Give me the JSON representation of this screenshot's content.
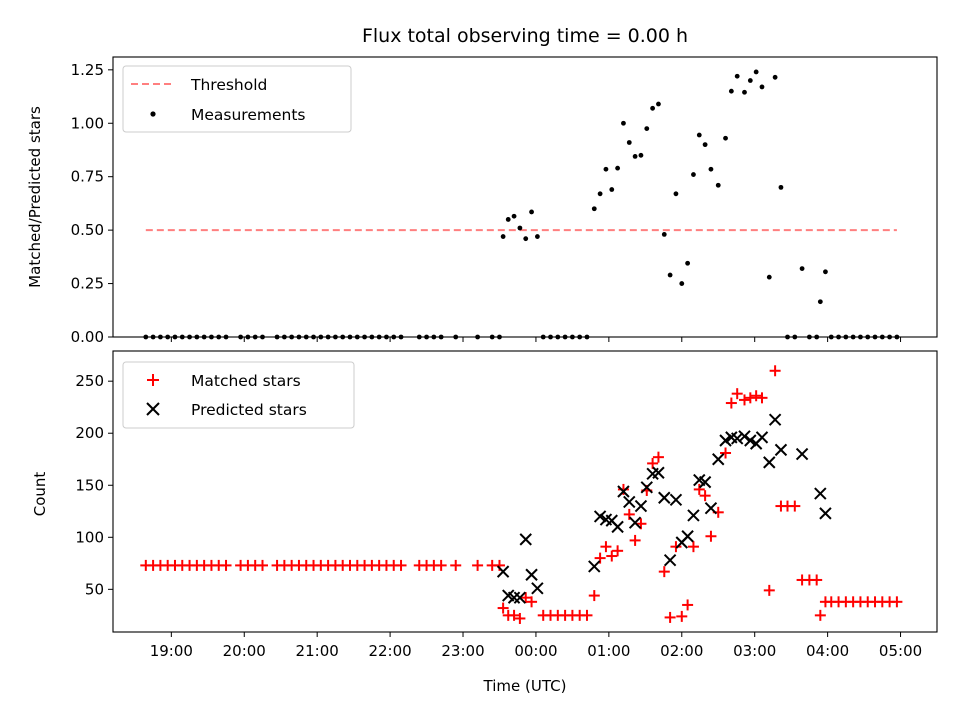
{
  "chart_data": [
    {
      "type": "scatter",
      "title": "Flux total observing time = 0.00 h",
      "xlabel": "",
      "ylabel": "Matched/Predicted stars",
      "xlim": [
        18.2,
        29.5
      ],
      "ylim": [
        0,
        1.31
      ],
      "yticks": [
        0,
        0.25,
        0.5,
        0.75,
        1.0,
        1.25
      ],
      "ytick_labels": [
        "0.00",
        "0.25",
        "0.50",
        "0.75",
        "1.00",
        "1.25"
      ],
      "xticks": [
        19,
        20,
        21,
        22,
        23,
        24,
        25,
        26,
        27,
        28,
        29
      ],
      "grid": false,
      "legend": "top-left",
      "threshold": {
        "name": "Threshold",
        "value": 0.5,
        "x_range": [
          18.65,
          28.95
        ],
        "color": "#ff7f7f"
      },
      "series": [
        {
          "name": "Measurements",
          "color": "#000000",
          "marker": "dot",
          "points": [
            [
              18.65,
              0
            ],
            [
              18.75,
              0
            ],
            [
              18.85,
              0
            ],
            [
              18.95,
              0
            ],
            [
              19.05,
              0
            ],
            [
              19.15,
              0
            ],
            [
              19.25,
              0
            ],
            [
              19.35,
              0
            ],
            [
              19.45,
              0
            ],
            [
              19.55,
              0
            ],
            [
              19.65,
              0
            ],
            [
              19.75,
              0
            ],
            [
              19.95,
              0
            ],
            [
              20.05,
              0
            ],
            [
              20.15,
              0
            ],
            [
              20.25,
              0
            ],
            [
              20.45,
              0
            ],
            [
              20.55,
              0
            ],
            [
              20.65,
              0
            ],
            [
              20.75,
              0
            ],
            [
              20.85,
              0
            ],
            [
              20.95,
              0
            ],
            [
              21.05,
              0
            ],
            [
              21.15,
              0
            ],
            [
              21.25,
              0
            ],
            [
              21.35,
              0
            ],
            [
              21.45,
              0
            ],
            [
              21.55,
              0
            ],
            [
              21.65,
              0
            ],
            [
              21.75,
              0
            ],
            [
              21.85,
              0
            ],
            [
              21.95,
              0
            ],
            [
              22.05,
              0
            ],
            [
              22.15,
              0
            ],
            [
              22.4,
              0
            ],
            [
              22.5,
              0
            ],
            [
              22.6,
              0
            ],
            [
              22.7,
              0
            ],
            [
              22.9,
              0
            ],
            [
              23.2,
              0
            ],
            [
              23.4,
              0
            ],
            [
              23.5,
              0
            ],
            [
              23.55,
              0.47
            ],
            [
              23.62,
              0.55
            ],
            [
              23.7,
              0.565
            ],
            [
              23.78,
              0.51
            ],
            [
              23.86,
              0.46
            ],
            [
              23.94,
              0.585
            ],
            [
              24.02,
              0.47
            ],
            [
              24.1,
              0
            ],
            [
              24.2,
              0
            ],
            [
              24.3,
              0
            ],
            [
              24.4,
              0
            ],
            [
              24.5,
              0
            ],
            [
              24.6,
              0
            ],
            [
              24.7,
              0
            ],
            [
              24.8,
              0.6
            ],
            [
              24.88,
              0.67
            ],
            [
              24.96,
              0.785
            ],
            [
              25.04,
              0.69
            ],
            [
              25.12,
              0.79
            ],
            [
              25.2,
              1.0
            ],
            [
              25.28,
              0.91
            ],
            [
              25.36,
              0.845
            ],
            [
              25.44,
              0.85
            ],
            [
              25.52,
              0.975
            ],
            [
              25.6,
              1.07
            ],
            [
              25.68,
              1.09
            ],
            [
              25.76,
              0.48
            ],
            [
              25.84,
              0.29
            ],
            [
              25.92,
              0.67
            ],
            [
              26.0,
              0.25
            ],
            [
              26.08,
              0.345
            ],
            [
              26.16,
              0.76
            ],
            [
              26.24,
              0.945
            ],
            [
              26.32,
              0.9
            ],
            [
              26.4,
              0.785
            ],
            [
              26.5,
              0.71
            ],
            [
              26.6,
              0.93
            ],
            [
              26.68,
              1.15
            ],
            [
              26.76,
              1.22
            ],
            [
              26.86,
              1.145
            ],
            [
              26.94,
              1.2
            ],
            [
              27.02,
              1.24
            ],
            [
              27.1,
              1.17
            ],
            [
              27.2,
              0.28
            ],
            [
              27.28,
              1.215
            ],
            [
              27.36,
              0.7
            ],
            [
              27.45,
              0
            ],
            [
              27.55,
              0
            ],
            [
              27.65,
              0.32
            ],
            [
              27.75,
              0
            ],
            [
              27.85,
              0
            ],
            [
              27.9,
              0.165
            ],
            [
              27.97,
              0.305
            ],
            [
              28.05,
              0
            ],
            [
              28.15,
              0
            ],
            [
              28.25,
              0
            ],
            [
              28.35,
              0
            ],
            [
              28.45,
              0
            ],
            [
              28.55,
              0
            ],
            [
              28.65,
              0
            ],
            [
              28.75,
              0
            ],
            [
              28.85,
              0
            ],
            [
              28.95,
              0
            ]
          ]
        }
      ]
    },
    {
      "type": "scatter",
      "title": "",
      "xlabel": "Time (UTC)",
      "ylabel": "Count",
      "xlim": [
        18.2,
        29.5
      ],
      "ylim": [
        9,
        279
      ],
      "yticks": [
        50,
        100,
        150,
        200,
        250
      ],
      "ytick_labels": [
        "50",
        "100",
        "150",
        "200",
        "250"
      ],
      "xticks": [
        19,
        20,
        21,
        22,
        23,
        24,
        25,
        26,
        27,
        28,
        29
      ],
      "xtick_labels": [
        "19:00",
        "20:00",
        "21:00",
        "22:00",
        "23:00",
        "00:00",
        "01:00",
        "02:00",
        "03:00",
        "04:00",
        "05:00"
      ],
      "grid": false,
      "legend": "top-left",
      "series": [
        {
          "name": "Matched stars",
          "color": "#ff0000",
          "marker": "plus",
          "points": [
            [
              18.65,
              73
            ],
            [
              18.75,
              73
            ],
            [
              18.85,
              73
            ],
            [
              18.95,
              73
            ],
            [
              19.05,
              73
            ],
            [
              19.15,
              73
            ],
            [
              19.25,
              73
            ],
            [
              19.35,
              73
            ],
            [
              19.45,
              73
            ],
            [
              19.55,
              73
            ],
            [
              19.65,
              73
            ],
            [
              19.75,
              73
            ],
            [
              19.95,
              73
            ],
            [
              20.05,
              73
            ],
            [
              20.15,
              73
            ],
            [
              20.25,
              73
            ],
            [
              20.45,
              73
            ],
            [
              20.55,
              73
            ],
            [
              20.65,
              73
            ],
            [
              20.75,
              73
            ],
            [
              20.85,
              73
            ],
            [
              20.95,
              73
            ],
            [
              21.05,
              73
            ],
            [
              21.15,
              73
            ],
            [
              21.25,
              73
            ],
            [
              21.35,
              73
            ],
            [
              21.45,
              73
            ],
            [
              21.55,
              73
            ],
            [
              21.65,
              73
            ],
            [
              21.75,
              73
            ],
            [
              21.85,
              73
            ],
            [
              21.95,
              73
            ],
            [
              22.05,
              73
            ],
            [
              22.15,
              73
            ],
            [
              22.4,
              73
            ],
            [
              22.5,
              73
            ],
            [
              22.6,
              73
            ],
            [
              22.7,
              73
            ],
            [
              22.9,
              73
            ],
            [
              23.2,
              73
            ],
            [
              23.4,
              73
            ],
            [
              23.5,
              73
            ],
            [
              23.55,
              32
            ],
            [
              23.62,
              25
            ],
            [
              23.7,
              25
            ],
            [
              23.78,
              22
            ],
            [
              23.86,
              42
            ],
            [
              23.94,
              38
            ],
            [
              24.1,
              25
            ],
            [
              24.2,
              25
            ],
            [
              24.3,
              25
            ],
            [
              24.4,
              25
            ],
            [
              24.5,
              25
            ],
            [
              24.6,
              25
            ],
            [
              24.7,
              25
            ],
            [
              24.8,
              44
            ],
            [
              24.88,
              80
            ],
            [
              24.96,
              91
            ],
            [
              25.04,
              82
            ],
            [
              25.12,
              87
            ],
            [
              25.2,
              146
            ],
            [
              25.28,
              122
            ],
            [
              25.36,
              97
            ],
            [
              25.44,
              113
            ],
            [
              25.52,
              145
            ],
            [
              25.6,
              171
            ],
            [
              25.68,
              177
            ],
            [
              25.76,
              67
            ],
            [
              25.84,
              23
            ],
            [
              25.92,
              91
            ],
            [
              26.0,
              24
            ],
            [
              26.08,
              35
            ],
            [
              26.16,
              91
            ],
            [
              26.24,
              146
            ],
            [
              26.32,
              140
            ],
            [
              26.4,
              101
            ],
            [
              26.5,
              124
            ],
            [
              26.6,
              181
            ],
            [
              26.68,
              229
            ],
            [
              26.76,
              238
            ],
            [
              26.86,
              232
            ],
            [
              26.94,
              234
            ],
            [
              27.02,
              236
            ],
            [
              27.1,
              234
            ],
            [
              27.2,
              49
            ],
            [
              27.28,
              260
            ],
            [
              27.36,
              130
            ],
            [
              27.45,
              130
            ],
            [
              27.55,
              130
            ],
            [
              27.65,
              59
            ],
            [
              27.75,
              59
            ],
            [
              27.85,
              59
            ],
            [
              27.9,
              25
            ],
            [
              27.97,
              38
            ],
            [
              28.05,
              38
            ],
            [
              28.15,
              38
            ],
            [
              28.25,
              38
            ],
            [
              28.35,
              38
            ],
            [
              28.45,
              38
            ],
            [
              28.55,
              38
            ],
            [
              28.65,
              38
            ],
            [
              28.75,
              38
            ],
            [
              28.85,
              38
            ],
            [
              28.95,
              38
            ]
          ]
        },
        {
          "name": "Predicted stars",
          "color": "#000000",
          "marker": "x",
          "points": [
            [
              23.55,
              67
            ],
            [
              23.62,
              44
            ],
            [
              23.7,
              42
            ],
            [
              23.78,
              42
            ],
            [
              23.86,
              98
            ],
            [
              23.94,
              64
            ],
            [
              24.02,
              51
            ],
            [
              24.8,
              72
            ],
            [
              24.88,
              120
            ],
            [
              24.96,
              117
            ],
            [
              25.04,
              116
            ],
            [
              25.12,
              110
            ],
            [
              25.2,
              144
            ],
            [
              25.28,
              134
            ],
            [
              25.36,
              114
            ],
            [
              25.44,
              130
            ],
            [
              25.52,
              148
            ],
            [
              25.6,
              161
            ],
            [
              25.68,
              162
            ],
            [
              25.76,
              138
            ],
            [
              25.84,
              78
            ],
            [
              25.92,
              136
            ],
            [
              26.0,
              95
            ],
            [
              26.08,
              101
            ],
            [
              26.16,
              121
            ],
            [
              26.24,
              155
            ],
            [
              26.32,
              153
            ],
            [
              26.4,
              128
            ],
            [
              26.5,
              175
            ],
            [
              26.6,
              193
            ],
            [
              26.68,
              196
            ],
            [
              26.76,
              195
            ],
            [
              26.86,
              197
            ],
            [
              26.94,
              193
            ],
            [
              27.02,
              190
            ],
            [
              27.1,
              196
            ],
            [
              27.2,
              172
            ],
            [
              27.28,
              213
            ],
            [
              27.36,
              184
            ],
            [
              27.65,
              180
            ],
            [
              27.9,
              142
            ],
            [
              27.97,
              123
            ]
          ]
        }
      ]
    }
  ]
}
